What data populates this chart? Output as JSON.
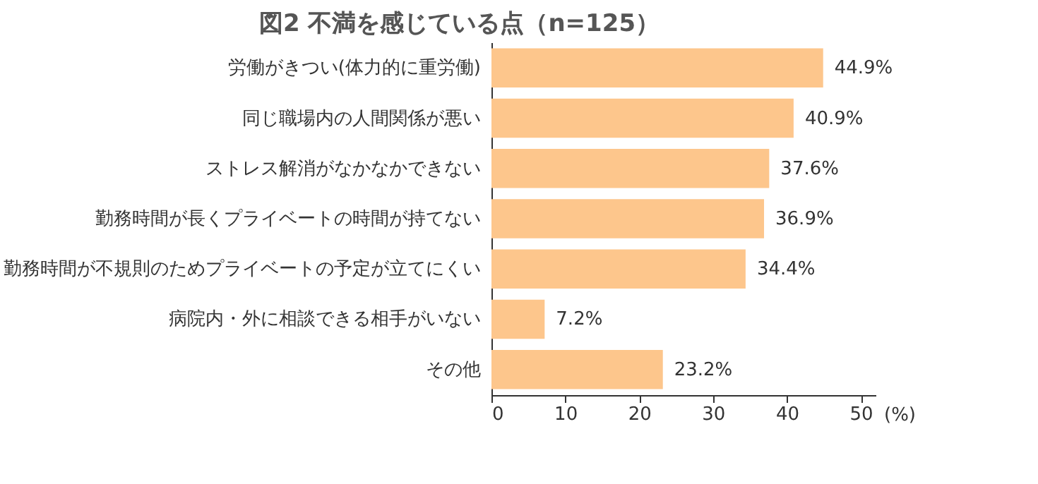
{
  "chart_data": {
    "type": "bar",
    "orientation": "horizontal",
    "title": "図2  不満を感じている点（n=125）",
    "xlabel": "(%)",
    "categories": [
      "労働がきつい(体力的に重労働)",
      "同じ職場内の人間関係が悪い",
      "ストレス解消がなかなかできない",
      "勤務時間が長くプライベートの時間が持てない",
      "勤務時間が不規則のためプライベートの予定が立てにくい",
      "病院内・外に相談できる相手がいない",
      "その他"
    ],
    "values": [
      44.9,
      40.9,
      37.6,
      36.9,
      34.4,
      7.2,
      23.2
    ],
    "value_labels": [
      "44.9%",
      "40.9%",
      "37.6%",
      "36.9%",
      "34.4%",
      "7.2%",
      "23.2%"
    ],
    "color": "#fdc68c",
    "xlim": [
      0,
      52
    ],
    "xticks": [
      0,
      10,
      20,
      30,
      40,
      50
    ],
    "grid": false
  }
}
